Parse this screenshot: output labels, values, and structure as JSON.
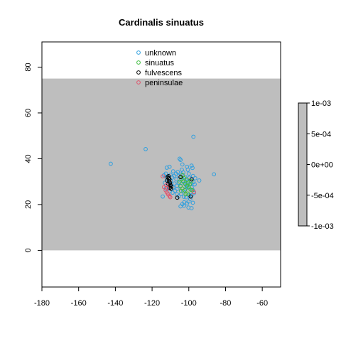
{
  "chart_data": {
    "type": "scatter",
    "title": "Cardinalis sinuatus",
    "xlim": [
      -180,
      -50
    ],
    "ylim": [
      -16,
      91
    ],
    "xticks": [
      -180,
      -160,
      -140,
      -120,
      -100,
      -80,
      -60
    ],
    "yticks": [
      0,
      20,
      40,
      60,
      80
    ],
    "background_band": {
      "x": [
        -180,
        -50
      ],
      "y": [
        0,
        75
      ],
      "color": "#bebebe"
    },
    "legend": {
      "position": "top-center",
      "entries": [
        {
          "label": "unknown",
          "color": "#2e9fdf"
        },
        {
          "label": "sinuatus",
          "color": "#3dbb3d"
        },
        {
          "label": "fulvescens",
          "color": "#000000"
        },
        {
          "label": "peninsulae",
          "color": "#df536b"
        }
      ]
    },
    "colorbar": {
      "ticks": [
        "1e-03",
        "5e-04",
        "0e+00",
        "-5e-04",
        "-1e-03"
      ],
      "color": "#bebebe"
    },
    "series": [
      {
        "name": "unknown",
        "color": "#2e9fdf",
        "points": [
          [
            -142.5,
            37.8
          ],
          [
            -123.5,
            44.2
          ],
          [
            -97.5,
            49.6
          ],
          [
            -86.3,
            33.2
          ],
          [
            -94.3,
            30.5
          ],
          [
            -112.5,
            33.5
          ],
          [
            -113.5,
            32.8
          ],
          [
            -112,
            36.1
          ],
          [
            -110.5,
            36.5
          ],
          [
            -108.5,
            34.5
          ],
          [
            -105,
            40
          ],
          [
            -104.5,
            39.5
          ],
          [
            -103.5,
            37.5
          ],
          [
            -101,
            36.5
          ],
          [
            -98.5,
            37
          ],
          [
            -98,
            36
          ],
          [
            -110,
            33
          ],
          [
            -109,
            31.8
          ],
          [
            -108,
            32.5
          ],
          [
            -107,
            33.5
          ],
          [
            -106,
            34.2
          ],
          [
            -105.5,
            32.5
          ],
          [
            -104,
            33.2
          ],
          [
            -103,
            34
          ],
          [
            -102,
            32
          ],
          [
            -101.2,
            31
          ],
          [
            -100.5,
            30.2
          ],
          [
            -99.6,
            31.7
          ],
          [
            -99,
            29
          ],
          [
            -98.4,
            27.5
          ],
          [
            -97.8,
            26.3
          ],
          [
            -97.2,
            25
          ],
          [
            -98.5,
            24
          ],
          [
            -99.2,
            22.5
          ],
          [
            -100.2,
            21.3
          ],
          [
            -101,
            20.5
          ],
          [
            -102.5,
            21
          ],
          [
            -103.5,
            20.2
          ],
          [
            -104.5,
            19.2
          ],
          [
            -100.2,
            18.7
          ],
          [
            -98.5,
            18.4
          ],
          [
            -105.5,
            23.5
          ],
          [
            -106.5,
            24.5
          ],
          [
            -107.5,
            26
          ],
          [
            -108.5,
            27.5
          ],
          [
            -109.5,
            28.8
          ],
          [
            -111.5,
            30
          ],
          [
            -113,
            29.5
          ],
          [
            -112.5,
            27
          ],
          [
            -114.2,
            23.5
          ],
          [
            -110.3,
            25.8
          ],
          [
            -103,
            25.8
          ],
          [
            -101.8,
            26.7
          ],
          [
            -100.8,
            27.5
          ],
          [
            -104.5,
            28.2
          ],
          [
            -105.5,
            29.5
          ],
          [
            -106.8,
            31
          ],
          [
            -103.2,
            30.5
          ],
          [
            -102.3,
            29.2
          ],
          [
            -101.5,
            28.5
          ],
          [
            -100,
            33.5
          ],
          [
            -97.7,
            32.5
          ],
          [
            -96.5,
            31.5
          ],
          [
            -96.8,
            28.8
          ],
          [
            -97.5,
            29.8
          ],
          [
            -106.2,
            26.8
          ],
          [
            -104.2,
            24.6
          ],
          [
            -102.7,
            23.4
          ],
          [
            -101.5,
            23.2
          ],
          [
            -99.8,
            24.2
          ],
          [
            -103.8,
            35.2
          ],
          [
            -100.5,
            35.2
          ],
          [
            -109.8,
            30.3
          ],
          [
            -111,
            31.6
          ],
          [
            -112.2,
            31.8
          ],
          [
            -107.8,
            29.2
          ],
          [
            -106.5,
            28.2
          ],
          [
            -108.8,
            25.2
          ],
          [
            -102.6,
            19.5
          ],
          [
            -97.8,
            20.8
          ]
        ]
      },
      {
        "name": "sinuatus",
        "color": "#3dbb3d",
        "points": [
          [
            -104,
            31
          ],
          [
            -103,
            30
          ],
          [
            -102,
            29
          ],
          [
            -101,
            28.2
          ],
          [
            -100,
            27.5
          ],
          [
            -99,
            26.5
          ],
          [
            -103.5,
            27
          ],
          [
            -104.5,
            28
          ],
          [
            -105,
            30
          ],
          [
            -102.5,
            31.5
          ],
          [
            -101,
            30.8
          ],
          [
            -100.2,
            29.5
          ],
          [
            -99.5,
            28.8
          ],
          [
            -98.6,
            30.2
          ],
          [
            -101.7,
            24.5
          ],
          [
            -100.6,
            24.8
          ],
          [
            -102.2,
            26.2
          ],
          [
            -104.2,
            26
          ],
          [
            -98.2,
            26.2
          ],
          [
            -103.4,
            32.8
          ]
        ]
      },
      {
        "name": "fulvescens",
        "color": "#000000",
        "points": [
          [
            -111.5,
            32
          ],
          [
            -111,
            31.5
          ],
          [
            -110.5,
            31
          ],
          [
            -111.8,
            30.5
          ],
          [
            -110.8,
            30.2
          ],
          [
            -110.2,
            29.5
          ],
          [
            -111.2,
            29
          ],
          [
            -110,
            28.5
          ],
          [
            -109.6,
            27.8
          ],
          [
            -110.4,
            27.3
          ],
          [
            -109.7,
            26.9
          ],
          [
            -111,
            32.4
          ],
          [
            -104.5,
            32
          ],
          [
            -106.3,
            23
          ],
          [
            -98.5,
            31
          ],
          [
            -99,
            23.5
          ]
        ]
      },
      {
        "name": "peninsulae",
        "color": "#df536b",
        "points": [
          [
            -112.6,
            26.2
          ],
          [
            -112,
            25.3
          ],
          [
            -111.3,
            24.5
          ],
          [
            -110.6,
            23.8
          ],
          [
            -110.1,
            23.2
          ],
          [
            -111.8,
            27.2
          ],
          [
            -113.5,
            27.6
          ],
          [
            -112.3,
            28.4
          ],
          [
            -114.2,
            32.3
          ],
          [
            -97.2,
            25.5
          ]
        ]
      }
    ]
  }
}
